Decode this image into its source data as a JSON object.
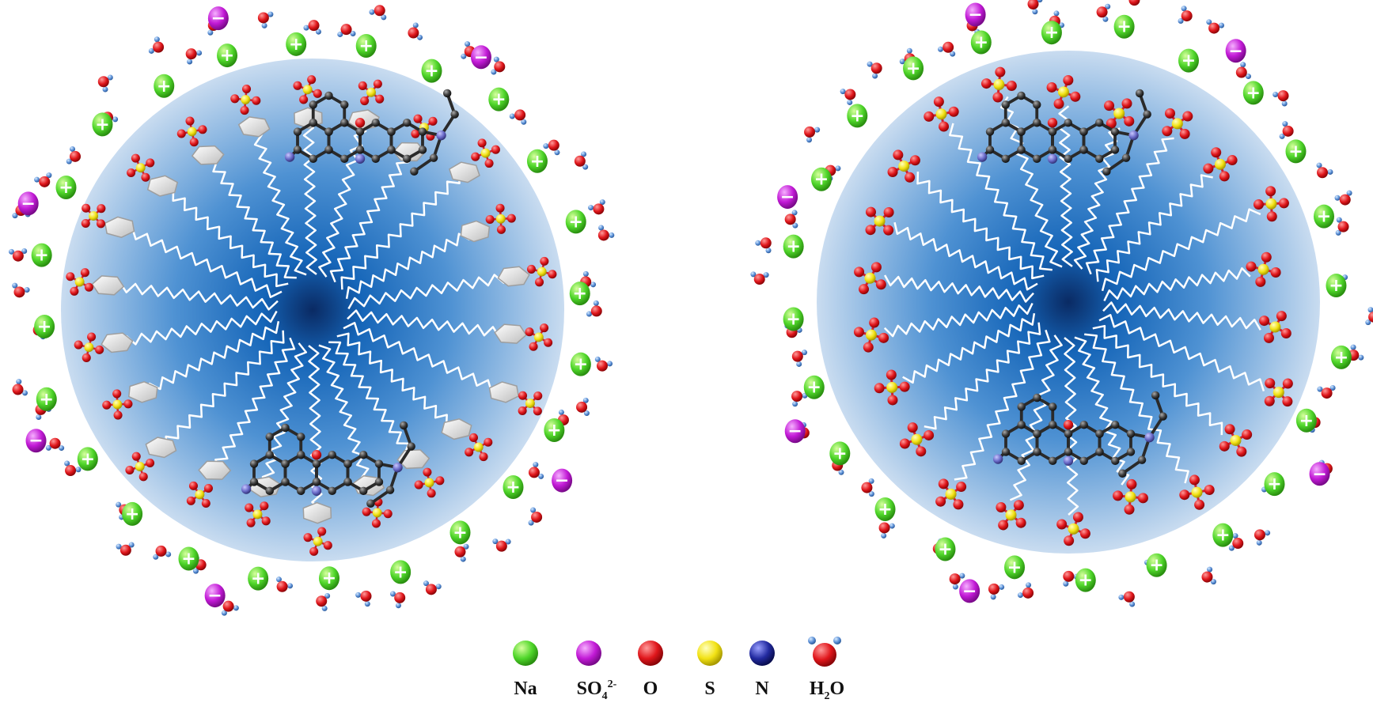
{
  "colors": {
    "sodium": "#4fd62a",
    "sulfate": "#c21ad6",
    "oxygen": "#e0161b",
    "sulfur": "#f2e214",
    "nitrogen": "#222aa0",
    "hydrogen": "#5b8fd6",
    "carbon": "#333333",
    "micelle_light": "#c9dcf0",
    "micelle_dark": "#0d2f6e",
    "tail": "#ffffff"
  },
  "charges": {
    "cation_sign": "+",
    "anion_sign": "−"
  },
  "micelles": [
    {
      "name": "micelle-left",
      "headgroups": "sulfate-with-hexagon-rings"
    },
    {
      "name": "micelle-right",
      "headgroups": "sulfate"
    }
  ],
  "legend": {
    "items": [
      {
        "key": "na",
        "icon": "sodium-sphere-icon",
        "label_main": "Na",
        "label_sub": "",
        "label_sup": ""
      },
      {
        "key": "so4",
        "icon": "sulfate-sphere-icon",
        "label_main": "SO",
        "label_sub": "4",
        "label_sup": "2-"
      },
      {
        "key": "o",
        "icon": "oxygen-sphere-icon",
        "label_main": "O",
        "label_sub": "",
        "label_sup": ""
      },
      {
        "key": "s",
        "icon": "sulfur-sphere-icon",
        "label_main": "S",
        "label_sub": "",
        "label_sup": ""
      },
      {
        "key": "n",
        "icon": "nitrogen-sphere-icon",
        "label_main": "N",
        "label_sub": "",
        "label_sup": ""
      },
      {
        "key": "h2o",
        "icon": "water-molecule-icon",
        "label_main": "H",
        "label_sub": "2",
        "label_sup": "",
        "label_tail": "O"
      }
    ]
  }
}
